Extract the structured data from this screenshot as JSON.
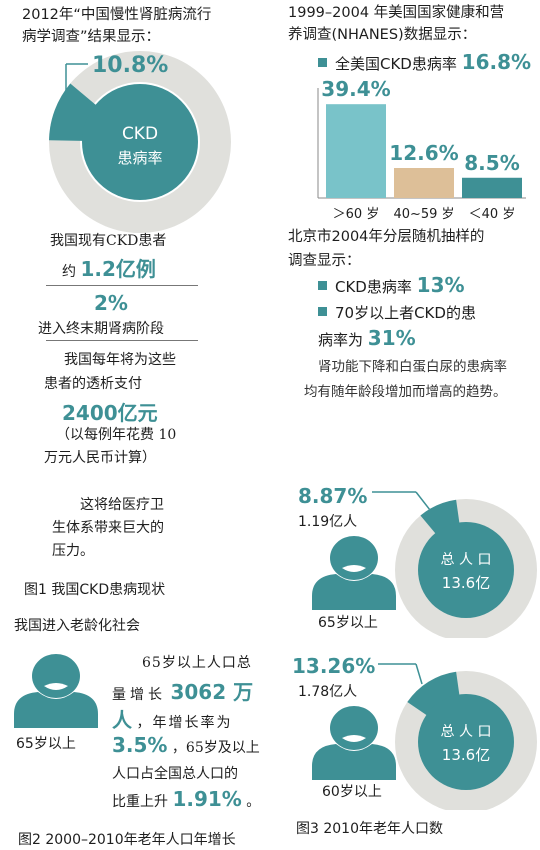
{
  "colors": {
    "teal": "#3e9095",
    "light_teal": "#79c3c9",
    "tan": "#ddbf98",
    "ring": "#e0e0dc",
    "text": "#1e1e1e"
  },
  "icons": [
    "person-icon",
    "square-bullet-icon"
  ],
  "left": {
    "heading_line1": "2012年“中国慢性肾脏病流行",
    "heading_line2": "病学调查”结果显示：",
    "donut_label": "10.8%",
    "donut_center_line1": "CKD",
    "donut_center_line2": "患病率",
    "patients_line1": "我国现有CKD患者",
    "patients_prefix": "约",
    "patients_value": "1.2亿例",
    "esrd_value": "2%",
    "esrd_text": "进入终末期肾病阶段",
    "cost_line1": "我国每年将为这些",
    "cost_line2": "患者的透析支付",
    "cost_value": "2400亿元",
    "cost_note1": "（以每例年花费 10",
    "cost_note2": "万元人民币计算）",
    "burden_line1": "这将给医疗卫",
    "burden_line2": "生体系带来巨大的",
    "burden_line3": "压力。",
    "fig1_caption": "图1 我国CKD患病现状"
  },
  "aging": {
    "heading": "我国进入老龄化社会",
    "person_label": "65岁以上",
    "line1": "65岁以上人口总",
    "line2_pre": "量增长",
    "line2_value": "3062 万",
    "line3_value": "人",
    "line3_post": "，年增长率为",
    "line4_value": "3.5%",
    "line4_post": "，65岁及以上",
    "line5": "人口占全国总人口的",
    "line6_pre": "比重上升",
    "line6_value": "1.91%",
    "line6_end": "。",
    "fig2_caption": "图2 2000–2010年老年人口年增长"
  },
  "nhanes": {
    "heading_line1": "1999–2004 年美国国家健康和营",
    "heading_line2": "养调查(NHANES)数据显示：",
    "bullet_text": "全美国CKD患病率",
    "bullet_value": "16.8%"
  },
  "beijing": {
    "heading_line1": "北京市2004年分层随机抽样的",
    "heading_line2": "调查显示：",
    "bullet1_text": "CKD患病率",
    "bullet1_value": "13%",
    "bullet2_line1": "70岁以上者CKD的患",
    "bullet2_line2_pre": "病率为",
    "bullet2_value": "31%",
    "note_line1": "肾功能下降和白蛋白尿的患病率",
    "note_line2": "均有随年龄段增加而增高的趋势。"
  },
  "fig3": {
    "pct_65": "8.87%",
    "count_65": "1.19亿人",
    "label_65": "65岁以上",
    "pct_60": "13.26%",
    "count_60": "1.78亿人",
    "label_60": "60岁以上",
    "total_label": "总 人 口",
    "total_value": "13.6亿",
    "caption": "图3 2010年老年人口数"
  },
  "chart_data": [
    {
      "type": "pie",
      "slices": [
        {
          "label": "CKD患病率",
          "value": 10.8
        },
        {
          "label": "",
          "value": 89.2
        }
      ]
    },
    {
      "type": "bar",
      "categories": [
        "＞60 岁",
        "40~59 岁",
        "＜40 岁"
      ],
      "values": [
        39.4,
        12.6,
        8.5
      ],
      "value_labels": [
        "39.4%",
        "12.6%",
        "8.5%"
      ],
      "colors": [
        "#79c3c9",
        "#ddbf98",
        "#3e9095"
      ],
      "ylim": [
        0,
        42
      ]
    },
    {
      "type": "pie",
      "slices": [
        {
          "label": "65岁以上",
          "value": 8.87
        },
        {
          "label": "总人口",
          "value": 91.13
        }
      ]
    },
    {
      "type": "pie",
      "slices": [
        {
          "label": "60岁以上",
          "value": 13.26
        },
        {
          "label": "总人口",
          "value": 86.74
        }
      ]
    }
  ]
}
